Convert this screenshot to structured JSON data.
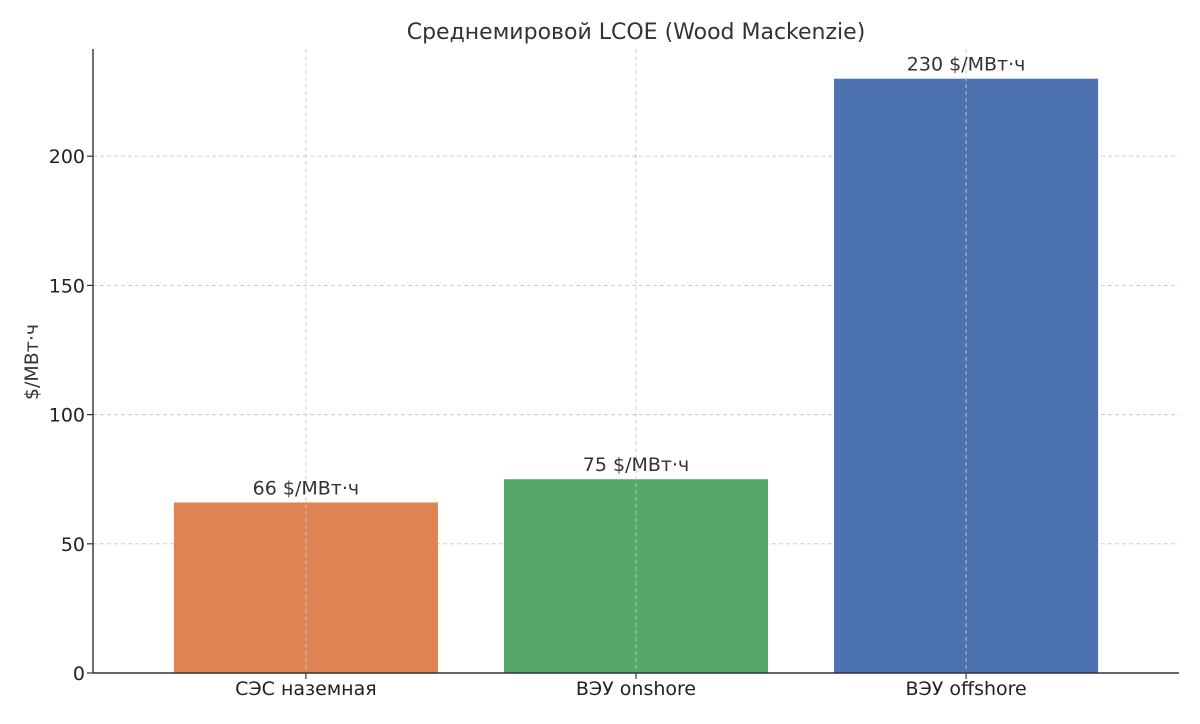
{
  "chart_data": {
    "type": "bar",
    "title": "Среднемировой LCOE (Wood Mackenzie)",
    "xlabel": "",
    "ylabel": "$/МВт·ч",
    "categories": [
      "СЭС наземная",
      "ВЭУ onshore",
      "ВЭУ offshore"
    ],
    "values": [
      66,
      75,
      230
    ],
    "value_labels": [
      "66 $/МВт·ч",
      "75 $/МВт·ч",
      "230 $/МВт·ч"
    ],
    "colors": [
      "#DD8452",
      "#55A868",
      "#4C72B0"
    ],
    "ylim": [
      0,
      241.5
    ],
    "yticks": [
      0,
      50,
      100,
      150,
      200
    ],
    "ytick_labels": [
      "0",
      "50",
      "100",
      "150",
      "200"
    ],
    "grid": true,
    "legend": "none"
  }
}
